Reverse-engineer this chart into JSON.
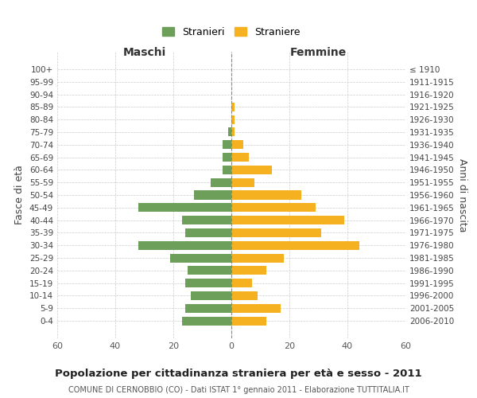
{
  "age_groups": [
    "100+",
    "95-99",
    "90-94",
    "85-89",
    "80-84",
    "75-79",
    "70-74",
    "65-69",
    "60-64",
    "55-59",
    "50-54",
    "45-49",
    "40-44",
    "35-39",
    "30-34",
    "25-29",
    "20-24",
    "15-19",
    "10-14",
    "5-9",
    "0-4"
  ],
  "birth_years": [
    "≤ 1910",
    "1911-1915",
    "1916-1920",
    "1921-1925",
    "1926-1930",
    "1931-1935",
    "1936-1940",
    "1941-1945",
    "1946-1950",
    "1951-1955",
    "1956-1960",
    "1961-1965",
    "1966-1970",
    "1971-1975",
    "1976-1980",
    "1981-1985",
    "1986-1990",
    "1991-1995",
    "1996-2000",
    "2001-2005",
    "2006-2010"
  ],
  "males": [
    0,
    0,
    0,
    0,
    0,
    1,
    3,
    3,
    3,
    7,
    13,
    32,
    17,
    16,
    32,
    21,
    15,
    16,
    14,
    16,
    17
  ],
  "females": [
    0,
    0,
    0,
    1,
    1,
    1,
    4,
    6,
    14,
    8,
    24,
    29,
    39,
    31,
    44,
    18,
    12,
    7,
    9,
    17,
    12
  ],
  "male_color": "#6d9e5a",
  "female_color": "#f5b120",
  "background_color": "#ffffff",
  "grid_color": "#cccccc",
  "title": "Popolazione per cittadinanza straniera per età e sesso - 2011",
  "subtitle": "COMUNE DI CERNOBBIO (CO) - Dati ISTAT 1° gennaio 2011 - Elaborazione TUTTITALIA.IT",
  "xlabel_left": "Maschi",
  "xlabel_right": "Femmine",
  "ylabel_left": "Fasce di età",
  "ylabel_right": "Anni di nascita",
  "xlim": 60,
  "legend_stranieri": "Stranieri",
  "legend_straniere": "Straniere"
}
